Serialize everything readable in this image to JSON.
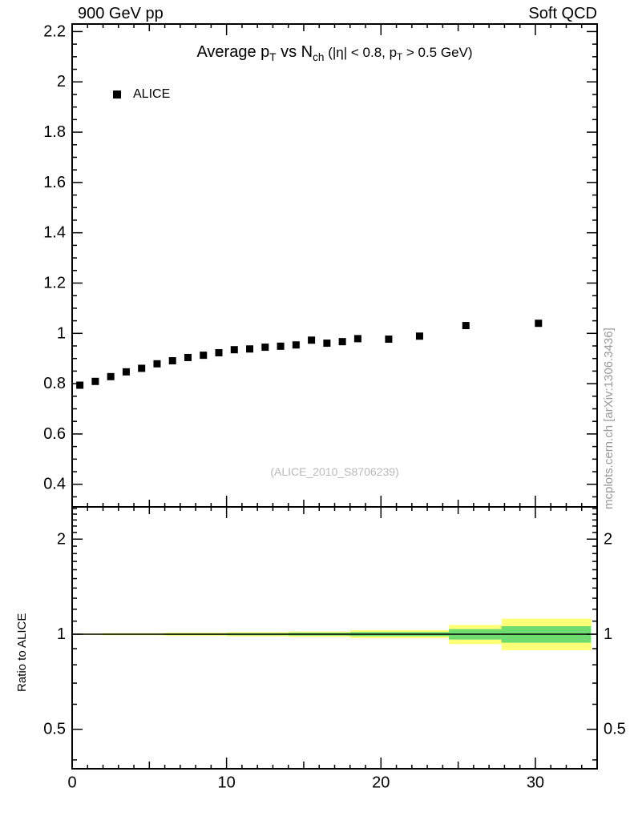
{
  "header": {
    "left": "900 GeV pp",
    "right": "Soft QCD"
  },
  "watermark": "mcplots.cern.ch [arXiv:1306.3436]",
  "main": {
    "title_parts": {
      "p1": "Average p",
      "sub1": "T",
      "p2": " vs N",
      "sub2": "ch",
      "p3": " (|η| < 0.8, p",
      "sub3": "T",
      "p4": " > 0.5 GeV)"
    },
    "legend_label": "ALICE",
    "ref_label": "(ALICE_2010_S8706239)"
  },
  "ratio_panel": {
    "ylabel": "Ratio to ALICE"
  },
  "chart_data": {
    "type": "scatter",
    "title": "Average pT vs Nch (|η| < 0.8, pT > 0.5 GeV)",
    "header_left": "900 GeV pp",
    "header_right": "Soft QCD",
    "xlabel": "",
    "ylabel": "",
    "xlim": [
      0,
      34
    ],
    "x_major_ticks": [
      0,
      10,
      20,
      30
    ],
    "main_panel": {
      "scale": "linear",
      "ylim": [
        0.31,
        2.23
      ],
      "y_major_ticks": [
        0.4,
        0.6,
        0.8,
        1,
        1.2,
        1.4,
        1.6,
        1.8,
        2,
        2.2
      ],
      "grid": false,
      "legend_position": "top-left"
    },
    "series": [
      {
        "name": "ALICE",
        "marker": "square",
        "color": "#000000",
        "x": [
          0.5,
          1.5,
          2.5,
          3.5,
          4.5,
          5.5,
          6.5,
          7.5,
          8.5,
          9.5,
          10.5,
          11.5,
          12.5,
          13.5,
          14.5,
          15.5,
          16.5,
          17.5,
          18.5,
          20.5,
          22.5,
          25.5,
          30.2
        ],
        "y": [
          0.794,
          0.809,
          0.828,
          0.847,
          0.861,
          0.879,
          0.891,
          0.904,
          0.913,
          0.923,
          0.935,
          0.938,
          0.945,
          0.949,
          0.954,
          0.973,
          0.961,
          0.967,
          0.979,
          0.977,
          0.989,
          1.031,
          1.04
        ]
      }
    ],
    "ratio_panel": {
      "scale": "log",
      "ylim": [
        0.375,
        2.53
      ],
      "y_major_ticks": [
        0.5,
        1,
        2
      ],
      "y_minor_ticks": [
        0.4,
        0.6,
        0.7,
        0.8,
        0.9,
        1.1,
        1.2,
        1.3,
        1.4,
        1.5,
        1.6,
        1.7,
        1.8,
        1.9,
        2.1,
        2.2,
        2.3,
        2.4,
        2.5
      ],
      "reference_line": 1,
      "bands": [
        {
          "name": "outer-uncertainty-band",
          "color": "#ffff78",
          "segments": [
            [
              0,
              2,
              0.995,
              1.005
            ],
            [
              2,
              6,
              0.992,
              1.008
            ],
            [
              6,
              10,
              0.988,
              1.012
            ],
            [
              10,
              14,
              0.984,
              1.016
            ],
            [
              14,
              18,
              0.98,
              1.02
            ],
            [
              18,
              24.4,
              0.972,
              1.03
            ],
            [
              24.4,
              27.8,
              0.93,
              1.07
            ],
            [
              27.8,
              33.6,
              0.89,
              1.12
            ]
          ]
        },
        {
          "name": "inner-uncertainty-band",
          "color": "#6fdc6f",
          "segments": [
            [
              0,
              2,
              0.998,
              1.002
            ],
            [
              2,
              6,
              0.996,
              1.004
            ],
            [
              6,
              10,
              0.994,
              1.006
            ],
            [
              10,
              14,
              0.992,
              1.008
            ],
            [
              14,
              18,
              0.99,
              1.011
            ],
            [
              18,
              24.4,
              0.986,
              1.016
            ],
            [
              24.4,
              27.8,
              0.962,
              1.038
            ],
            [
              27.8,
              33.6,
              0.94,
              1.06
            ]
          ]
        }
      ]
    }
  }
}
